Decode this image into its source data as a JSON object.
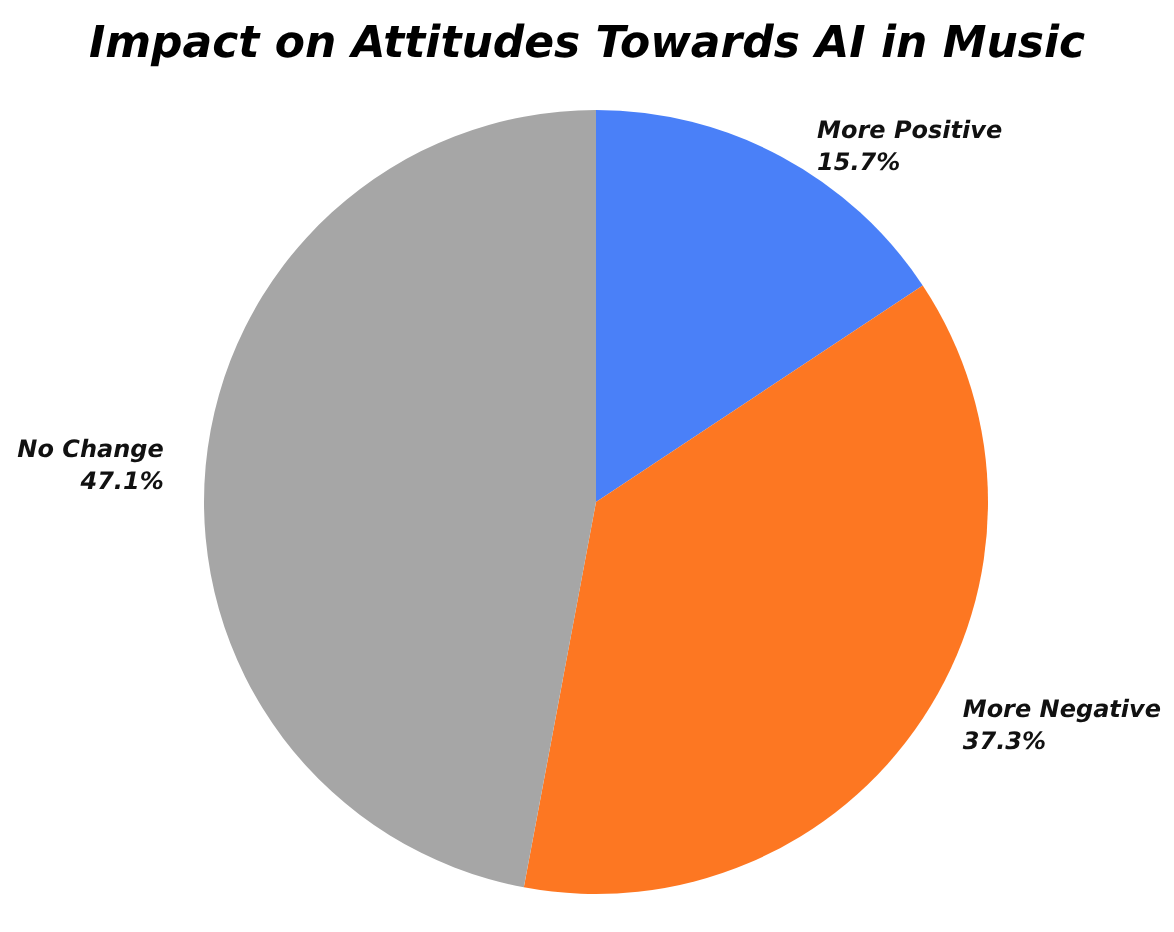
{
  "chart_data": {
    "type": "pie",
    "title": "Impact on Attitudes Towards AI in Music",
    "categories": [
      "More Positive",
      "More Negative",
      "No Change"
    ],
    "values": [
      15.7,
      37.3,
      47.1
    ],
    "value_labels": [
      "15.7%",
      "37.3%",
      "47.1%"
    ],
    "colors": [
      "#4a80f8",
      "#fd7722",
      "#a6a6a6"
    ],
    "legend": false
  }
}
